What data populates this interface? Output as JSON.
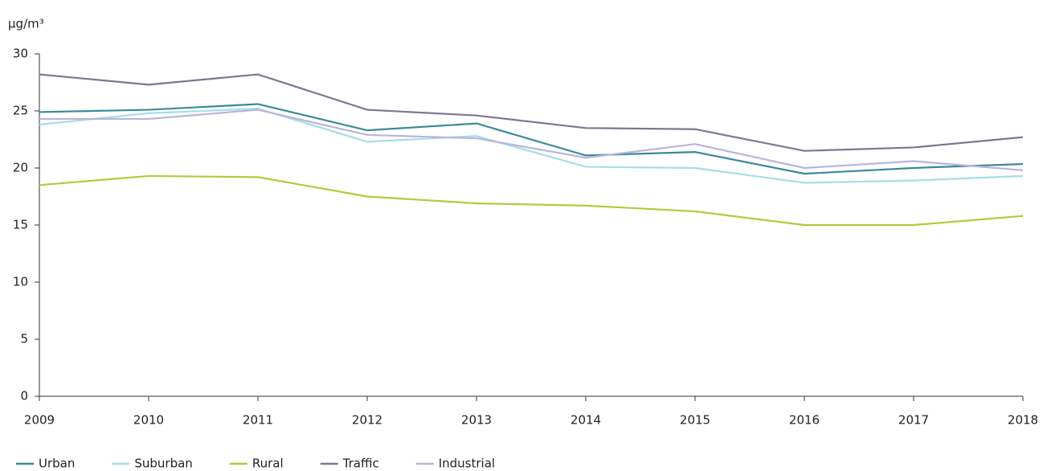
{
  "chart_data": {
    "type": "line",
    "y_label": "μg/m³",
    "categories": [
      "2009",
      "2010",
      "2011",
      "2012",
      "2013",
      "2014",
      "2015",
      "2016",
      "2017",
      "2018"
    ],
    "series": [
      {
        "name": "Urban",
        "color": "#3a8a9a",
        "values": [
          24.9,
          25.1,
          25.6,
          23.3,
          23.9,
          21.1,
          21.4,
          19.5,
          20.0,
          20.35
        ]
      },
      {
        "name": "Suburban",
        "color": "#a6dde6",
        "values": [
          23.8,
          24.8,
          25.2,
          22.3,
          22.8,
          20.1,
          20.0,
          18.7,
          18.9,
          19.3
        ]
      },
      {
        "name": "Rural",
        "color": "#b5c93a",
        "values": [
          18.5,
          19.3,
          19.2,
          17.5,
          16.9,
          16.7,
          16.2,
          15.0,
          15.0,
          15.8
        ]
      },
      {
        "name": "Traffic",
        "color": "#7b7794",
        "values": [
          28.2,
          27.3,
          28.2,
          25.1,
          24.6,
          23.5,
          23.4,
          21.5,
          21.8,
          22.7
        ]
      },
      {
        "name": "Industrial",
        "color": "#b9b4db",
        "values": [
          24.3,
          24.3,
          25.1,
          22.9,
          22.6,
          20.9,
          22.1,
          20.0,
          20.6,
          19.8
        ]
      }
    ],
    "ylim": [
      0,
      30
    ],
    "yticks": [
      0,
      5,
      10,
      15,
      20,
      25,
      30
    ],
    "legend": "bottom-left"
  }
}
